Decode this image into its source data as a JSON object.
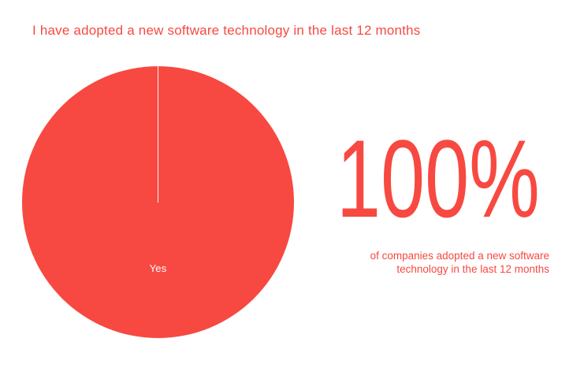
{
  "colors": {
    "accent": "#F74941",
    "background": "#FFFFFF",
    "slice_divider": "#FFFFFF",
    "slice_label_text": "#FFFFFF"
  },
  "title": "I have adopted a new software technology in the last 12 months",
  "chart_data": {
    "type": "pie",
    "title": "I have adopted a new software technology in the last 12 months",
    "categories": [
      "Yes"
    ],
    "values": [
      100
    ],
    "unit": "percent",
    "slice_colors": [
      "#F74941"
    ],
    "start_angle_deg": 0,
    "legend_position": "none",
    "annotations": [
      {
        "role": "headline-stat",
        "text": "100%"
      },
      {
        "role": "stat-caption",
        "text": "of companies adopted a new software technology in the last 12 months"
      }
    ]
  },
  "pie": {
    "slice_label": "Yes"
  },
  "callout": {
    "value": "100%",
    "caption_line1": "of companies adopted a new software",
    "caption_line2": "technology in the last 12 months"
  }
}
